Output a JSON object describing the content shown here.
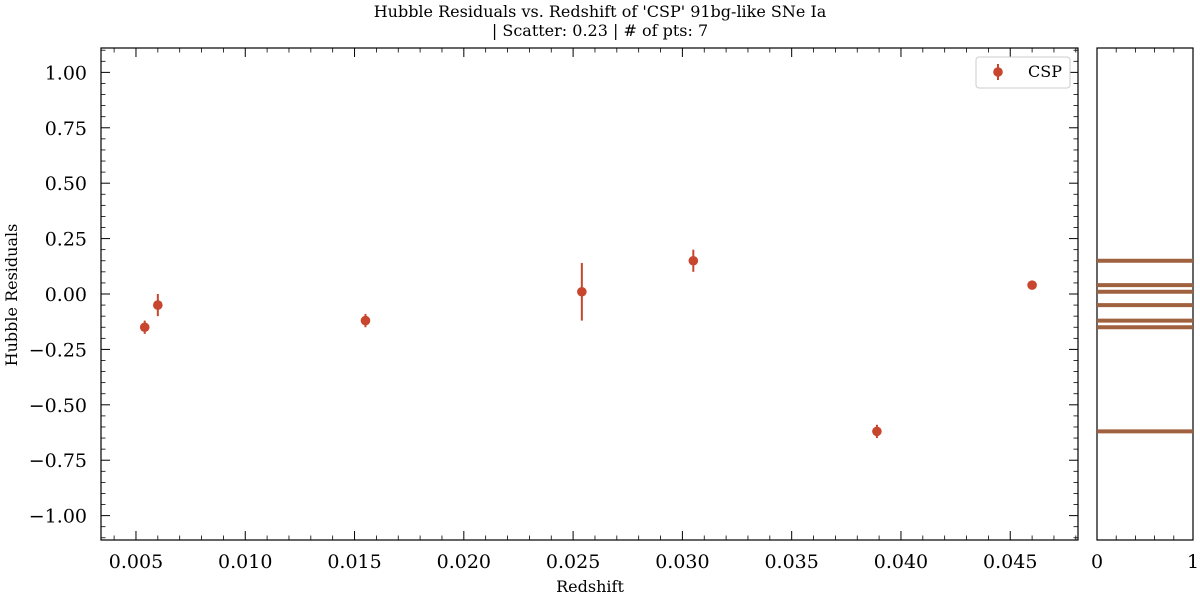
{
  "chart_data": [
    {
      "type": "scatter",
      "title": "Hubble Residuals vs. Redshift of 'CSP' 91bg-like SNe Ia",
      "subtitle": "| Scatter: 0.23 | # of pts: 7",
      "xlabel": "Redshift",
      "ylabel": "Hubble Residuals",
      "xlim": [
        0.0034,
        0.0481
      ],
      "ylim": [
        -1.11,
        1.11
      ],
      "xticks": [
        0.005,
        0.01,
        0.015,
        0.02,
        0.025,
        0.03,
        0.035,
        0.04,
        0.045
      ],
      "xtick_labels": [
        "0.005",
        "0.010",
        "0.015",
        "0.020",
        "0.025",
        "0.030",
        "0.035",
        "0.040",
        "0.045"
      ],
      "yticks": [
        1.0,
        0.75,
        0.5,
        0.25,
        0.0,
        -0.25,
        -0.5,
        -0.75,
        -1.0
      ],
      "ytick_labels": [
        "1.00",
        "0.75",
        "0.50",
        "0.25",
        "0.00",
        "−0.25",
        "−0.50",
        "−0.75",
        "−1.00"
      ],
      "legend": {
        "position": "top-right",
        "entries": [
          "CSP"
        ]
      },
      "series": [
        {
          "name": "CSP",
          "color": "#c8452e",
          "points": [
            {
              "x": 0.0054,
              "y": -0.15,
              "err": 0.03
            },
            {
              "x": 0.006,
              "y": -0.05,
              "err": 0.05
            },
            {
              "x": 0.0155,
              "y": -0.12,
              "err": 0.03
            },
            {
              "x": 0.0254,
              "y": 0.01,
              "err": 0.13
            },
            {
              "x": 0.0305,
              "y": 0.15,
              "err": 0.05
            },
            {
              "x": 0.0389,
              "y": -0.62,
              "err": 0.03
            },
            {
              "x": 0.046,
              "y": 0.04,
              "err": 0.02
            }
          ]
        }
      ],
      "grid": false
    },
    {
      "type": "bar",
      "orientation": "horizontal",
      "description_hint": "side histogram of residuals",
      "color": "#a0613f",
      "ylim": [
        -1.11,
        1.11
      ],
      "xlim": [
        0,
        1
      ],
      "xticks": [
        0,
        1
      ],
      "xtick_labels": [
        "0",
        "1"
      ],
      "lines": [
        0.15,
        0.04,
        0.01,
        -0.05,
        -0.12,
        -0.15,
        -0.62
      ]
    }
  ]
}
